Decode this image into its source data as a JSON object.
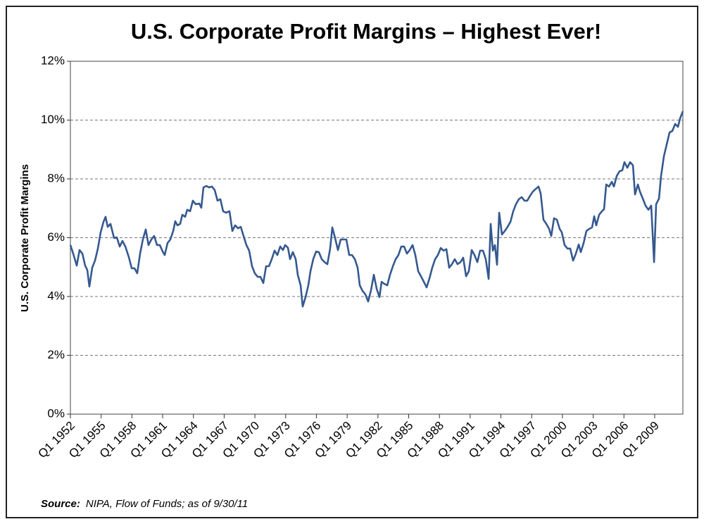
{
  "chart_data": {
    "type": "line",
    "title": "U.S. Corporate Profit Margins – Highest Ever!",
    "y_label": "U.S. Corporate Profit Margins",
    "source_label": "Source:",
    "source_text": "NIPA, Flow of Funds; as of 9/30/11",
    "xlim": [
      1952,
      2011.75
    ],
    "ylim": [
      0,
      12
    ],
    "grid": true,
    "xticks": [
      {
        "value": 1952,
        "label": "Q1 1952"
      },
      {
        "value": 1955,
        "label": "Q1 1955"
      },
      {
        "value": 1958,
        "label": "Q1 1958"
      },
      {
        "value": 1961,
        "label": "Q1 1961"
      },
      {
        "value": 1964,
        "label": "Q1 1964"
      },
      {
        "value": 1967,
        "label": "Q1 1967"
      },
      {
        "value": 1970,
        "label": "Q1 1970"
      },
      {
        "value": 1973,
        "label": "Q1 1973"
      },
      {
        "value": 1976,
        "label": "Q1 1976"
      },
      {
        "value": 1979,
        "label": "Q1 1979"
      },
      {
        "value": 1982,
        "label": "Q1 1982"
      },
      {
        "value": 1985,
        "label": "Q1 1985"
      },
      {
        "value": 1988,
        "label": "Q1 1988"
      },
      {
        "value": 1991,
        "label": "Q1 1991"
      },
      {
        "value": 1994,
        "label": "Q1 1994"
      },
      {
        "value": 1997,
        "label": "Q1 1997"
      },
      {
        "value": 2000,
        "label": "Q1 2000"
      },
      {
        "value": 2003,
        "label": "Q1 2003"
      },
      {
        "value": 2006,
        "label": "Q1 2006"
      },
      {
        "value": 2009,
        "label": "Q1 2009"
      }
    ],
    "yticks": [
      {
        "value": 0,
        "label": "0%"
      },
      {
        "value": 2,
        "label": "2%"
      },
      {
        "value": 4,
        "label": "4%"
      },
      {
        "value": 6,
        "label": "6%"
      },
      {
        "value": 8,
        "label": "8%"
      },
      {
        "value": 10,
        "label": "10%"
      },
      {
        "value": 12,
        "label": "12%"
      }
    ],
    "series": [
      {
        "color": "#35598f",
        "x": [
          1952.0,
          1952.27,
          1952.62,
          1952.89,
          1953.17,
          1953.44,
          1953.65,
          1953.85,
          1954.13,
          1954.4,
          1954.68,
          1954.95,
          1955.23,
          1955.43,
          1955.64,
          1955.91,
          1956.26,
          1956.53,
          1956.81,
          1957.08,
          1957.36,
          1957.7,
          1957.98,
          1958.25,
          1958.52,
          1958.8,
          1959.07,
          1959.35,
          1959.62,
          1959.9,
          1960.17,
          1960.45,
          1960.72,
          1961.0,
          1961.2,
          1961.48,
          1961.75,
          1962.03,
          1962.23,
          1962.44,
          1962.71,
          1962.92,
          1963.19,
          1963.4,
          1963.68,
          1963.95,
          1964.22,
          1964.57,
          1964.77,
          1964.98,
          1965.26,
          1965.53,
          1965.8,
          1966.08,
          1966.35,
          1966.63,
          1966.9,
          1967.18,
          1967.52,
          1967.8,
          1968.07,
          1968.35,
          1968.62,
          1968.89,
          1969.17,
          1969.44,
          1969.72,
          1969.99,
          1970.27,
          1970.54,
          1970.82,
          1971.09,
          1971.37,
          1971.64,
          1971.92,
          1972.19,
          1972.47,
          1972.74,
          1972.95,
          1973.22,
          1973.43,
          1973.7,
          1973.98,
          1974.18,
          1974.46,
          1974.66,
          1974.94,
          1975.21,
          1975.42,
          1975.69,
          1975.97,
          1976.24,
          1976.52,
          1976.79,
          1977.07,
          1977.34,
          1977.55,
          1977.82,
          1978.1,
          1978.37,
          1978.65,
          1978.92,
          1979.2,
          1979.47,
          1979.75,
          1980.02,
          1980.23,
          1980.5,
          1980.78,
          1981.05,
          1981.33,
          1981.6,
          1981.88,
          1982.15,
          1982.36,
          1982.63,
          1982.91,
          1983.18,
          1983.46,
          1983.73,
          1984.0,
          1984.28,
          1984.55,
          1984.83,
          1985.1,
          1985.38,
          1985.65,
          1985.93,
          1986.2,
          1986.48,
          1986.75,
          1987.03,
          1987.3,
          1987.58,
          1987.85,
          1988.13,
          1988.4,
          1988.68,
          1988.95,
          1989.22,
          1989.5,
          1989.77,
          1990.05,
          1990.32,
          1990.6,
          1990.87,
          1991.15,
          1991.42,
          1991.7,
          1991.97,
          1992.25,
          1992.52,
          1992.8,
          1993.0,
          1993.21,
          1993.41,
          1993.62,
          1993.83,
          1994.1,
          1994.38,
          1994.65,
          1994.93,
          1995.2,
          1995.47,
          1995.75,
          1996.02,
          1996.3,
          1996.57,
          1996.85,
          1997.12,
          1997.4,
          1997.67,
          1997.88,
          1998.15,
          1998.43,
          1998.7,
          1998.91,
          1999.18,
          1999.46,
          1999.73,
          1999.94,
          2000.21,
          2000.49,
          2000.76,
          2001.04,
          2001.31,
          2001.59,
          2001.79,
          2002.07,
          2002.34,
          2002.62,
          2002.89,
          2003.1,
          2003.3,
          2003.58,
          2003.85,
          2004.06,
          2004.27,
          2004.54,
          2004.82,
          2005.02,
          2005.3,
          2005.57,
          2005.84,
          2006.05,
          2006.33,
          2006.6,
          2006.88,
          2007.08,
          2007.36,
          2007.56,
          2007.84,
          2008.11,
          2008.39,
          2008.66,
          2008.94,
          2009.14,
          2009.42,
          2009.62,
          2009.9,
          2010.17,
          2010.45,
          2010.72,
          2011.0,
          2011.27,
          2011.48,
          2011.75
        ],
        "values": [
          5.75,
          5.46,
          5.05,
          5.58,
          5.46,
          5.05,
          4.9,
          4.34,
          4.98,
          5.22,
          5.63,
          6.18,
          6.54,
          6.71,
          6.37,
          6.47,
          5.99,
          6.01,
          5.7,
          5.89,
          5.7,
          5.34,
          4.96,
          4.96,
          4.79,
          5.46,
          5.94,
          6.28,
          5.75,
          5.94,
          6.06,
          5.75,
          5.75,
          5.53,
          5.41,
          5.82,
          5.94,
          6.23,
          6.56,
          6.42,
          6.47,
          6.78,
          6.71,
          6.95,
          6.9,
          7.26,
          7.14,
          7.16,
          7.02,
          7.71,
          7.76,
          7.71,
          7.74,
          7.62,
          7.26,
          7.31,
          6.9,
          6.85,
          6.9,
          6.23,
          6.42,
          6.32,
          6.37,
          6.06,
          5.75,
          5.56,
          5.03,
          4.79,
          4.67,
          4.67,
          4.46,
          5.03,
          5.03,
          5.27,
          5.56,
          5.41,
          5.7,
          5.58,
          5.75,
          5.66,
          5.27,
          5.51,
          5.27,
          4.74,
          4.38,
          3.66,
          3.98,
          4.38,
          4.86,
          5.27,
          5.53,
          5.51,
          5.27,
          5.17,
          5.1,
          5.63,
          6.35,
          5.99,
          5.58,
          5.94,
          5.94,
          5.94,
          5.41,
          5.41,
          5.27,
          4.98,
          4.38,
          4.19,
          4.07,
          3.83,
          4.22,
          4.74,
          4.26,
          3.98,
          4.5,
          4.43,
          4.38,
          4.74,
          5.03,
          5.27,
          5.41,
          5.7,
          5.7,
          5.46,
          5.58,
          5.75,
          5.41,
          4.86,
          4.69,
          4.5,
          4.31,
          4.62,
          4.98,
          5.27,
          5.41,
          5.65,
          5.56,
          5.61,
          4.98,
          5.1,
          5.27,
          5.1,
          5.17,
          5.32,
          4.69,
          4.86,
          5.58,
          5.41,
          5.17,
          5.56,
          5.56,
          5.27,
          4.6,
          6.47,
          5.56,
          5.75,
          5.08,
          6.85,
          6.11,
          6.23,
          6.37,
          6.54,
          6.9,
          7.14,
          7.31,
          7.38,
          7.26,
          7.26,
          7.43,
          7.57,
          7.66,
          7.74,
          7.5,
          6.61,
          6.47,
          6.3,
          6.06,
          6.66,
          6.61,
          6.3,
          6.18,
          5.75,
          5.63,
          5.63,
          5.22,
          5.46,
          5.77,
          5.51,
          5.82,
          6.23,
          6.3,
          6.35,
          6.73,
          6.42,
          6.78,
          6.9,
          6.97,
          7.81,
          7.74,
          7.9,
          7.74,
          8.1,
          8.26,
          8.29,
          8.57,
          8.38,
          8.57,
          8.46,
          7.47,
          7.81,
          7.57,
          7.33,
          7.09,
          6.95,
          7.09,
          5.17,
          7.14,
          7.33,
          8.1,
          8.77,
          9.17,
          9.58,
          9.63,
          9.87,
          9.77,
          10.06,
          10.3
        ]
      }
    ]
  }
}
